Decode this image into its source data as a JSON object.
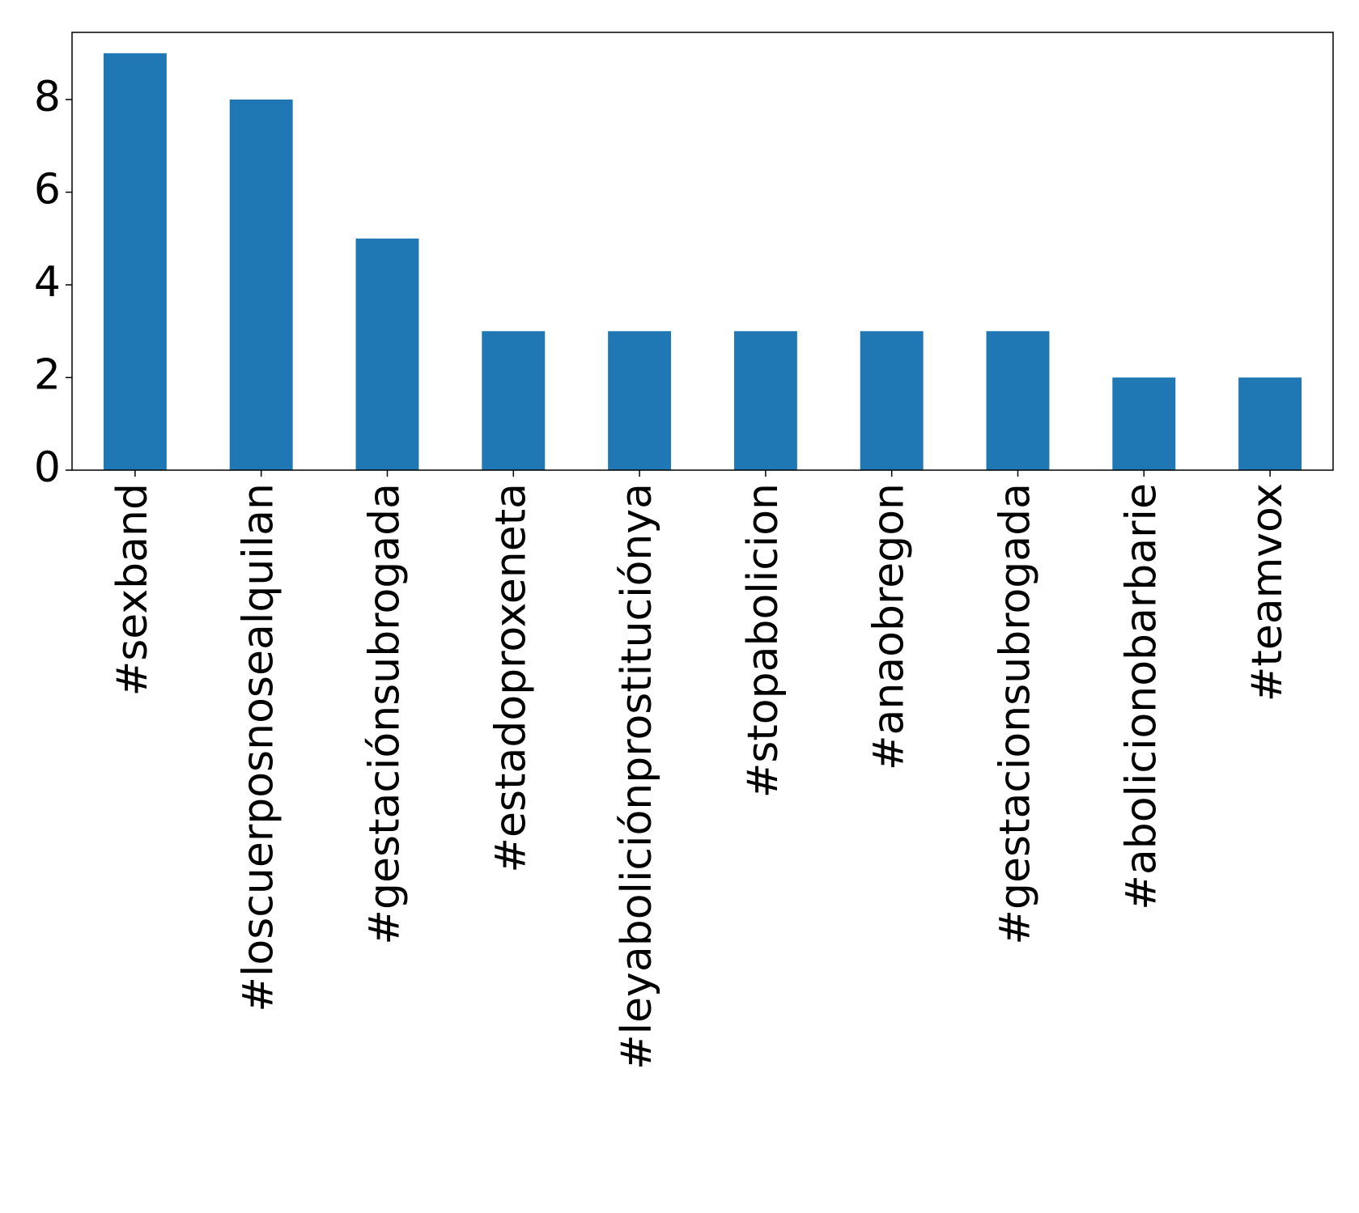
{
  "chart_data": {
    "type": "bar",
    "categories": [
      "#sexband",
      "#loscuerposnosealquilan",
      "#gestaciónsubrogada",
      "#estadoproxeneta",
      "#leyaboliciónprostituciónya",
      "#stopabolicion",
      "#anaobregon",
      "#gestacionsubrogada",
      "#abolicionobarbarie",
      "#teamvox"
    ],
    "values": [
      9,
      8,
      5,
      3,
      3,
      3,
      3,
      3,
      2,
      2
    ],
    "color": "#1f77b4",
    "ylim": [
      0,
      9.45
    ],
    "yticks": [
      0,
      2,
      4,
      6,
      8
    ],
    "grid": false
  }
}
